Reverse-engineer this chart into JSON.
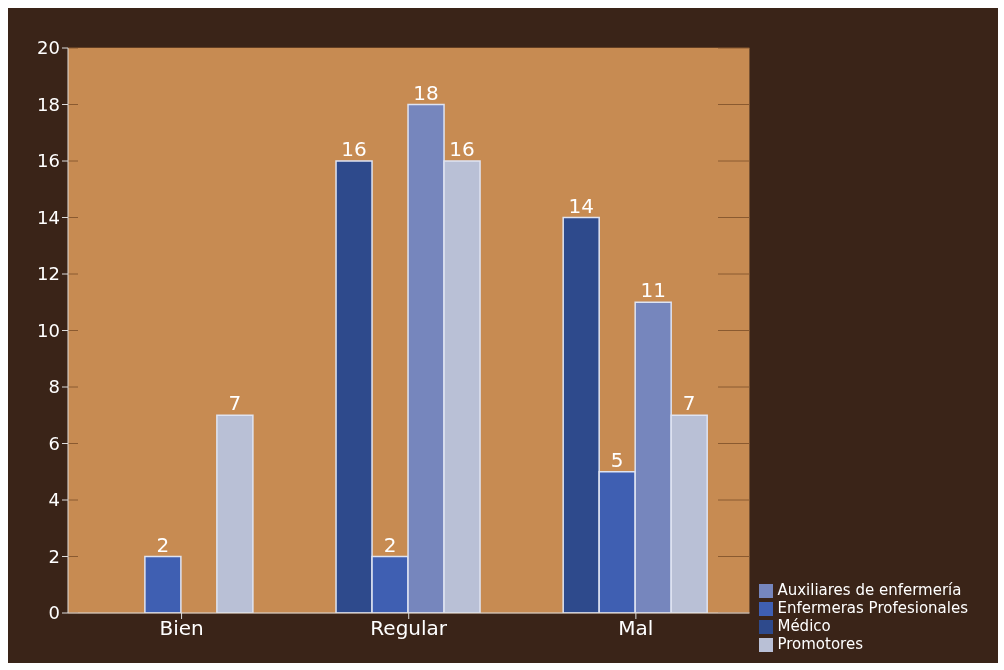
{
  "chart_data": {
    "type": "bar",
    "categories": [
      "Bien",
      "Regular",
      "Mal"
    ],
    "series": [
      {
        "name": "Médico",
        "color": "#2e4a8c",
        "values": [
          null,
          16,
          14
        ]
      },
      {
        "name": "Enfermeras Profesionales",
        "color": "#3f5fb2",
        "values": [
          2,
          2,
          5
        ]
      },
      {
        "name": "Auxiliares de enfermería",
        "color": "#7686bd",
        "values": [
          null,
          18,
          11
        ]
      },
      {
        "name": "Promotores",
        "color": "#b9c0d6",
        "values": [
          7,
          16,
          7
        ]
      }
    ],
    "ylim": [
      0,
      20
    ],
    "yticks": [
      0,
      2,
      4,
      6,
      8,
      10,
      12,
      14,
      16,
      18,
      20
    ],
    "grid": "y",
    "legend": "bottom right",
    "data_labels": true
  }
}
